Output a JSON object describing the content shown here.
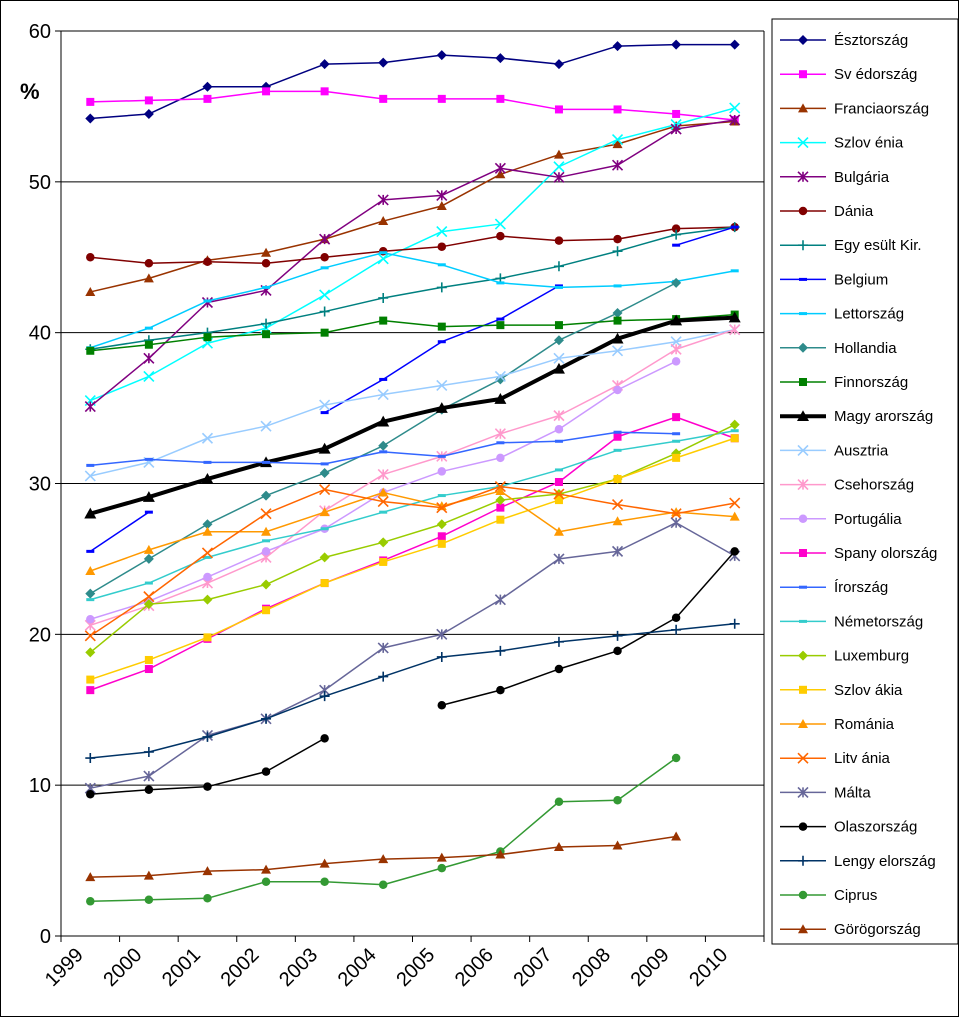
{
  "chart_data": {
    "type": "line",
    "title": "",
    "xlabel": "",
    "ylabel": "%",
    "ylim": [
      0,
      60
    ],
    "yticks": [
      0,
      10,
      20,
      30,
      40,
      50,
      60
    ],
    "grid": true,
    "legend_position": "right",
    "categories": [
      "1999",
      "2000",
      "2001",
      "2002",
      "2003",
      "2004",
      "2005",
      "2006",
      "2007",
      "2008",
      "2009",
      "2010"
    ],
    "series": [
      {
        "name": "Észtország",
        "color": "#000080",
        "marker": "diamond",
        "values": [
          54.2,
          54.5,
          56.3,
          56.3,
          57.8,
          57.9,
          58.4,
          58.2,
          57.8,
          59.0,
          59.1,
          59.1
        ]
      },
      {
        "name": "Sv édország",
        "color": "#ff00ff",
        "marker": "square",
        "values": [
          55.3,
          55.4,
          55.5,
          56.0,
          56.0,
          55.5,
          55.5,
          55.5,
          54.8,
          54.8,
          54.5,
          54.1
        ]
      },
      {
        "name": "Franciaország",
        "color": "#993300",
        "marker": "triangle",
        "values": [
          42.7,
          43.6,
          44.8,
          45.3,
          46.2,
          47.4,
          48.4,
          50.5,
          51.8,
          52.5,
          53.7,
          54.0
        ]
      },
      {
        "name": "Szlov énia",
        "color": "#00ffff",
        "marker": "x",
        "values": [
          35.5,
          37.1,
          39.3,
          40.3,
          42.5,
          44.9,
          46.7,
          47.2,
          51.0,
          52.8,
          53.8,
          54.9
        ]
      },
      {
        "name": "Bulgária",
        "color": "#800080",
        "marker": "star",
        "values": [
          35.1,
          38.3,
          42.0,
          42.8,
          46.2,
          48.8,
          49.1,
          50.9,
          50.3,
          51.1,
          53.5,
          54.1
        ]
      },
      {
        "name": "Dánia",
        "color": "#800000",
        "marker": "circle",
        "values": [
          45.0,
          44.6,
          44.7,
          44.6,
          45.0,
          45.4,
          45.7,
          46.4,
          46.1,
          46.2,
          46.9,
          47.0
        ]
      },
      {
        "name": "Egy esült Kir.",
        "color": "#008080",
        "marker": "plus",
        "values": [
          38.9,
          39.5,
          40.0,
          40.6,
          41.4,
          42.3,
          43.0,
          43.6,
          44.4,
          45.4,
          46.5,
          47.0
        ]
      },
      {
        "name": "Belgium",
        "color": "#0000ff",
        "marker": "dash",
        "values": [
          25.5,
          28.1,
          null,
          null,
          34.7,
          36.9,
          39.4,
          40.9,
          43.1,
          null,
          45.8,
          47.0
        ]
      },
      {
        "name": "Lettország",
        "color": "#00ccff",
        "marker": "dash",
        "values": [
          39.0,
          40.3,
          42.1,
          43.0,
          44.3,
          45.3,
          44.5,
          43.3,
          43.0,
          43.1,
          43.4,
          44.1
        ]
      },
      {
        "name": "Hollandia",
        "color": "#2e8b8b",
        "marker": "diamond",
        "values": [
          22.7,
          25.0,
          27.3,
          29.2,
          30.7,
          32.5,
          34.9,
          36.9,
          39.5,
          41.3,
          43.3,
          null
        ]
      },
      {
        "name": "Finnország",
        "color": "#008000",
        "marker": "square",
        "values": [
          38.8,
          39.2,
          39.7,
          39.9,
          40.0,
          40.8,
          40.4,
          40.5,
          40.5,
          40.8,
          40.9,
          41.2
        ]
      },
      {
        "name": "Magy arország",
        "color": "#000000",
        "marker": "triangle",
        "bold": true,
        "values": [
          28.0,
          29.1,
          30.3,
          31.4,
          32.3,
          34.1,
          35.0,
          35.6,
          37.6,
          39.6,
          40.8,
          41.0
        ]
      },
      {
        "name": "Ausztria",
        "color": "#99ccff",
        "marker": "x",
        "values": [
          30.5,
          31.4,
          33.0,
          33.8,
          35.2,
          35.9,
          36.5,
          37.1,
          38.3,
          38.8,
          39.4,
          40.2
        ]
      },
      {
        "name": "Csehország",
        "color": "#ff99cc",
        "marker": "star",
        "values": [
          20.6,
          21.9,
          23.4,
          25.1,
          28.2,
          30.6,
          31.8,
          33.3,
          34.5,
          36.5,
          38.9,
          40.2
        ]
      },
      {
        "name": "Portugália",
        "color": "#cc99ff",
        "marker": "circle",
        "values": [
          21.0,
          22.2,
          23.8,
          25.5,
          27.0,
          29.4,
          30.8,
          31.7,
          33.6,
          36.2,
          38.1,
          null
        ]
      },
      {
        "name": "Spany olország",
        "color": "#ff00cc",
        "marker": "square",
        "values": [
          16.3,
          17.7,
          19.7,
          21.7,
          23.4,
          24.9,
          26.5,
          28.4,
          30.1,
          33.1,
          34.4,
          33.0
        ]
      },
      {
        "name": "Írország",
        "color": "#3366ff",
        "marker": "dash",
        "values": [
          31.2,
          31.6,
          31.4,
          31.4,
          31.3,
          32.1,
          31.8,
          32.7,
          32.8,
          33.4,
          33.3,
          null
        ]
      },
      {
        "name": "Németország",
        "color": "#33cccc",
        "marker": "dash",
        "values": [
          22.3,
          23.4,
          25.1,
          26.2,
          27.0,
          28.1,
          29.2,
          29.8,
          30.9,
          32.2,
          32.8,
          33.5
        ]
      },
      {
        "name": "Luxemburg",
        "color": "#99cc00",
        "marker": "diamond",
        "values": [
          18.8,
          22.0,
          22.3,
          23.3,
          25.1,
          26.1,
          27.3,
          28.9,
          29.3,
          30.3,
          32.0,
          33.9
        ]
      },
      {
        "name": "Szlov ákia",
        "color": "#ffcc00",
        "marker": "square",
        "values": [
          17.0,
          18.3,
          19.8,
          21.6,
          23.4,
          24.8,
          26.0,
          27.6,
          28.9,
          30.3,
          31.7,
          33.0
        ]
      },
      {
        "name": "Románia",
        "color": "#ff9900",
        "marker": "triangle",
        "values": [
          24.2,
          25.6,
          26.8,
          26.8,
          28.1,
          29.4,
          28.5,
          29.5,
          26.8,
          27.5,
          28.1,
          27.8
        ]
      },
      {
        "name": "Litv ánia",
        "color": "#ff6600",
        "marker": "x",
        "values": [
          19.9,
          22.5,
          25.4,
          28.0,
          29.6,
          28.8,
          28.4,
          29.8,
          29.3,
          28.6,
          28.0,
          28.7
        ]
      },
      {
        "name": "Málta",
        "color": "#666699",
        "marker": "star",
        "values": [
          9.8,
          10.6,
          13.3,
          14.4,
          16.3,
          19.1,
          20.0,
          22.3,
          25.0,
          25.5,
          27.4,
          25.2
        ]
      },
      {
        "name": "Olaszország",
        "color": "#000000",
        "marker": "circle",
        "values": [
          9.4,
          9.7,
          9.9,
          10.9,
          13.1,
          null,
          15.3,
          16.3,
          17.7,
          18.9,
          21.1,
          25.5
        ]
      },
      {
        "name": "Lengy elország",
        "color": "#003366",
        "marker": "plus",
        "values": [
          11.8,
          12.2,
          13.2,
          14.4,
          15.9,
          17.2,
          18.5,
          18.9,
          19.5,
          19.9,
          20.3,
          20.7
        ]
      },
      {
        "name": "Ciprus",
        "color": "#339933",
        "marker": "circle",
        "values": [
          2.3,
          2.4,
          2.5,
          3.6,
          3.6,
          3.4,
          4.5,
          5.6,
          8.9,
          9.0,
          11.8,
          null
        ]
      },
      {
        "name": "Görögország",
        "color": "#993300",
        "marker": "triangle",
        "values": [
          3.9,
          4.0,
          4.3,
          4.4,
          4.8,
          5.1,
          5.2,
          5.4,
          5.9,
          6.0,
          6.6,
          null
        ]
      }
    ]
  }
}
